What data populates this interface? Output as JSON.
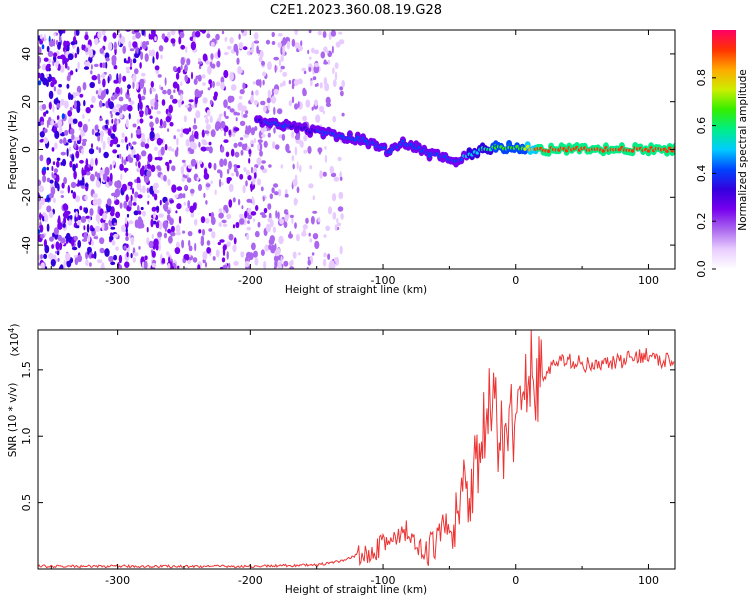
{
  "title": "C2E1.2023.360.08.19.G28",
  "chart_data": [
    {
      "type": "heatmap",
      "title": "C2E1.2023.360.08.19.G28",
      "xlabel": "Height of straight line (km)",
      "ylabel": "Frequency (Hz)",
      "xlim": [
        -360,
        120
      ],
      "ylim": [
        -50,
        50
      ],
      "x_ticks": [
        -300,
        -200,
        -100,
        0,
        100
      ],
      "y_ticks": [
        40,
        20,
        0,
        -20,
        -40
      ],
      "grid": false,
      "colorbar": {
        "label": "Normalized spectral amplitude",
        "range": [
          0.0,
          1.0
        ],
        "ticks": [
          0.0,
          0.2,
          0.4,
          0.6,
          0.8
        ],
        "colors": [
          "#ffffff",
          "#e8ccff",
          "#aa66ee",
          "#7700ee",
          "#3300dd",
          "#0044ff",
          "#00ccff",
          "#00ee88",
          "#33ee00",
          "#ccee00",
          "#ffaa00",
          "#ff3300",
          "#ff0066"
        ]
      },
      "signal_track": [
        {
          "x": -195,
          "freq": 12,
          "amp": 0.35
        },
        {
          "x": -185,
          "freq": 11,
          "amp": 0.4
        },
        {
          "x": -175,
          "freq": 10,
          "amp": 0.4
        },
        {
          "x": -165,
          "freq": 9,
          "amp": 0.35
        },
        {
          "x": -155,
          "freq": 8,
          "amp": 0.35
        },
        {
          "x": -145,
          "freq": 7,
          "amp": 0.4
        },
        {
          "x": -135,
          "freq": 6,
          "amp": 0.45
        },
        {
          "x": -125,
          "freq": 5,
          "amp": 0.4
        },
        {
          "x": -115,
          "freq": 4,
          "amp": 0.4
        },
        {
          "x": -105,
          "freq": 2,
          "amp": 0.45
        },
        {
          "x": -95,
          "freq": -1,
          "amp": 0.45
        },
        {
          "x": -85,
          "freq": 3,
          "amp": 0.4
        },
        {
          "x": -75,
          "freq": 1,
          "amp": 0.45
        },
        {
          "x": -65,
          "freq": -2,
          "amp": 0.45
        },
        {
          "x": -55,
          "freq": -3,
          "amp": 0.45
        },
        {
          "x": -45,
          "freq": -5,
          "amp": 0.4
        },
        {
          "x": -35,
          "freq": -2,
          "amp": 0.5
        },
        {
          "x": -25,
          "freq": 0,
          "amp": 0.55
        },
        {
          "x": -15,
          "freq": 1,
          "amp": 0.65
        },
        {
          "x": -5,
          "freq": 1,
          "amp": 0.7
        },
        {
          "x": 5,
          "freq": 1,
          "amp": 0.7
        },
        {
          "x": 15,
          "freq": 0,
          "amp": 0.9
        },
        {
          "x": 50,
          "freq": 0,
          "amp": 0.95
        },
        {
          "x": 120,
          "freq": 0,
          "amp": 0.95
        }
      ]
    },
    {
      "type": "line",
      "xlabel": "Height of straight line (km)",
      "ylabel": "SNR (10 * v/v)",
      "y_scale_note": "(x10",
      "y_scale_exp": "4",
      "xlim": [
        -360,
        120
      ],
      "ylim": [
        0,
        1.8
      ],
      "x_ticks": [
        -300,
        -200,
        -100,
        0,
        100
      ],
      "y_ticks": [
        0.5,
        1.0,
        1.5
      ],
      "grid": false,
      "series": [
        {
          "color": "#ee3333",
          "x": [
            -360,
            -300,
            -250,
            -200,
            -150,
            -130,
            -110,
            -100,
            -90,
            -80,
            -75,
            -70,
            -60,
            -50,
            -40,
            -30,
            -25,
            -20,
            -15,
            -10,
            -5,
            0,
            5,
            10,
            15,
            20,
            30,
            40,
            50,
            60,
            70,
            80,
            90,
            100,
            110,
            120
          ],
          "y": [
            0.02,
            0.02,
            0.02,
            0.02,
            0.03,
            0.06,
            0.15,
            0.22,
            0.2,
            0.3,
            0.12,
            0.1,
            0.2,
            0.38,
            0.55,
            0.8,
            1.0,
            1.2,
            1.1,
            0.9,
            1.3,
            1.05,
            1.2,
            1.5,
            1.45,
            1.45,
            1.55,
            1.57,
            1.55,
            1.52,
            1.55,
            1.56,
            1.6,
            1.62,
            1.55,
            1.6
          ]
        }
      ]
    }
  ]
}
